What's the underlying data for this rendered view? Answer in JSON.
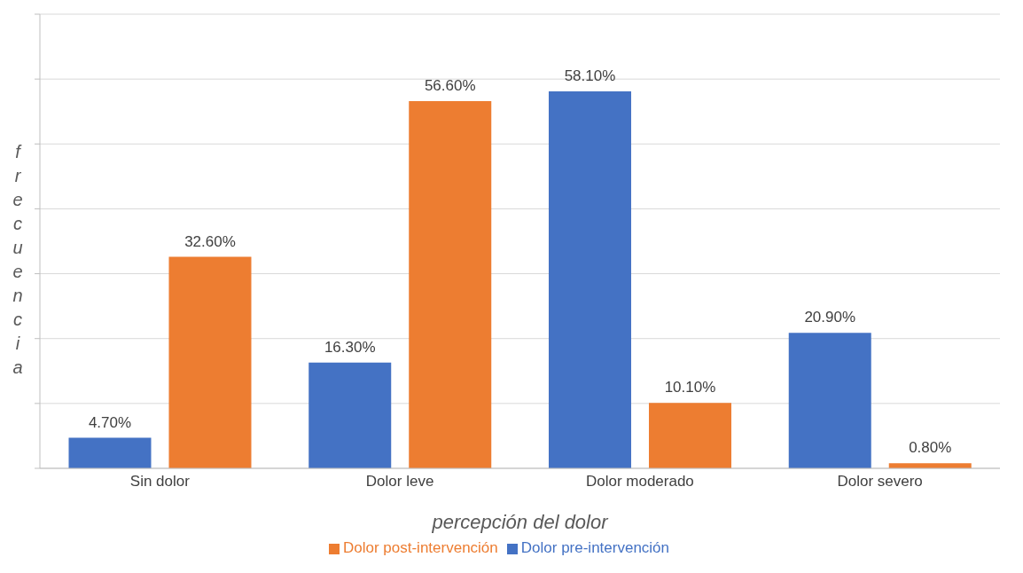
{
  "chart_data": {
    "type": "bar",
    "xlabel": "percepción del dolor",
    "ylabel": "frecuencia",
    "categories": [
      "Sin dolor",
      "Dolor leve",
      "Dolor moderado",
      "Dolor severo"
    ],
    "series": [
      {
        "name": "Dolor pre-intervención",
        "color": "#4472c4",
        "values": [
          4.7,
          16.3,
          58.1,
          20.9
        ],
        "value_labels": [
          "4.70%",
          "16.30%",
          "58.10%",
          "20.90%"
        ]
      },
      {
        "name": "Dolor post-intervención",
        "color": "#ed7d31",
        "values": [
          32.6,
          56.6,
          10.1,
          0.8
        ],
        "value_labels": [
          "32.60%",
          "56.60%",
          "10.10%",
          "0.80%"
        ]
      }
    ],
    "ylim": [
      0,
      70
    ],
    "yticks": [
      {
        "value": 0,
        "label": null
      },
      {
        "value": 10,
        "label": null
      },
      {
        "value": 20,
        "label": null
      },
      {
        "value": 30,
        "label": null
      },
      {
        "value": 40,
        "label": null
      },
      {
        "value": 50,
        "label": null
      },
      {
        "value": 60,
        "label": null
      },
      {
        "value": 70,
        "label": null
      }
    ],
    "tick_labels": "x",
    "grid": "y",
    "legend": "bottom"
  }
}
